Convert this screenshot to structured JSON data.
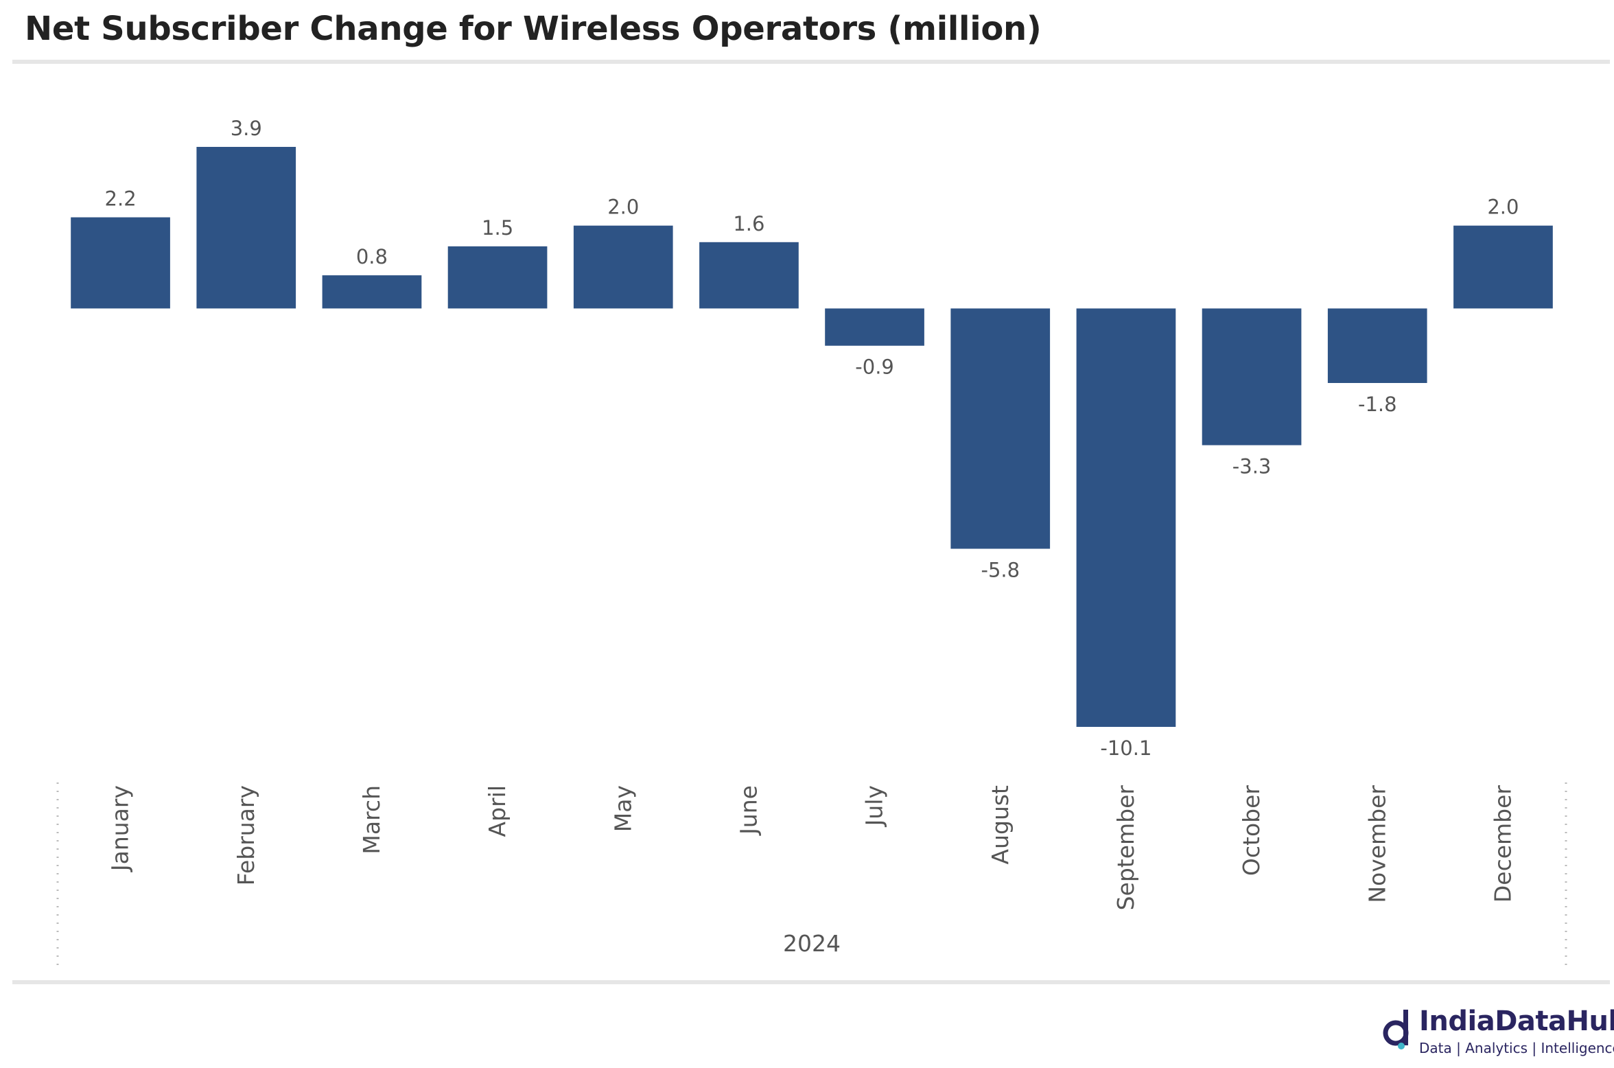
{
  "chart_data": {
    "type": "bar",
    "title": "Net Subscriber Change for Wireless Operators (million)",
    "group_label": "2024",
    "categories": [
      "January",
      "February",
      "March",
      "April",
      "May",
      "June",
      "July",
      "August",
      "September",
      "October",
      "November",
      "December"
    ],
    "values": [
      2.2,
      3.9,
      0.8,
      1.5,
      2.0,
      1.6,
      -0.9,
      -5.8,
      -10.1,
      -3.3,
      -1.8,
      2.0
    ],
    "value_labels": [
      "2.2",
      "3.9",
      "0.8",
      "1.5",
      "2.0",
      "1.6",
      "-0.9",
      "-5.8",
      "-10.1",
      "-3.3",
      "-1.8",
      "2.0"
    ],
    "ylim": [
      -10.1,
      3.9
    ],
    "grid": false,
    "legend": "none",
    "bar_color": "#2e5385"
  },
  "brand": {
    "name": "IndiaDataHub",
    "tagline": "Data | Analytics | Intelligence",
    "color": "#2a2560"
  }
}
